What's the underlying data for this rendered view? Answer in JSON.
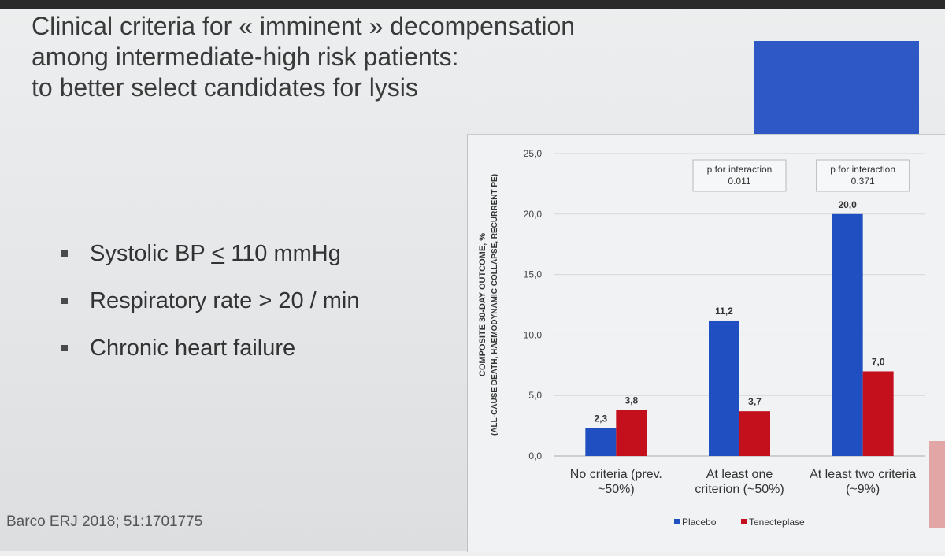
{
  "title": {
    "line1": "Clinical criteria for « imminent » decompensation",
    "line2": "among intermediate-high risk patients:",
    "line3": "to better select candidates for lysis"
  },
  "bullets": [
    {
      "text_before": "Systolic BP ",
      "underlined": "<",
      "text_after": " 110 mmHg"
    },
    {
      "text_before": "Respiratory rate > 20 / min",
      "underlined": "",
      "text_after": ""
    },
    {
      "text_before": "Chronic heart failure",
      "underlined": "",
      "text_after": ""
    }
  ],
  "footnote": "Barco ERJ 2018; 51:1701775",
  "colors": {
    "placebo": "#1f4fc0",
    "tenecteplase": "#c4101c",
    "logo_box": "#2f58c7"
  },
  "chart_data": {
    "type": "bar",
    "categories": [
      "No criteria (prev. ~50%)",
      "At least one criterion (~50%)",
      "At least two criteria (~9%)"
    ],
    "category_lines": [
      [
        "No criteria (prev.",
        "~50%)"
      ],
      [
        "At least one",
        "criterion (~50%)"
      ],
      [
        "At least two criteria",
        "(~9%)"
      ]
    ],
    "series": [
      {
        "name": "Placebo",
        "values": [
          2.3,
          11.2,
          20.0
        ],
        "labels": [
          "2,3",
          "11,2",
          "20,0"
        ],
        "color": "#1f4fc0"
      },
      {
        "name": "Tenecteplase",
        "values": [
          3.8,
          3.7,
          7.0
        ],
        "labels": [
          "3,8",
          "3,7",
          "7,0"
        ],
        "color": "#c4101c"
      }
    ],
    "ylabel": "COMPOSITE 30-DAY OUTCOME, %",
    "ylabel2": "(ALL-CAUSE DEATH, HAEMODYNAMIC COLLAPSE, RECURRENT PE)",
    "ylim": [
      0,
      25
    ],
    "yticks": [
      "0,0",
      "5,0",
      "10,0",
      "15,0",
      "20,0",
      "25,0"
    ],
    "ytick_values": [
      0,
      5,
      10,
      15,
      20,
      25
    ],
    "grid": true,
    "legend": "bottom",
    "annotations": [
      {
        "category_index": 1,
        "line1": "p for interaction",
        "line2": "0.011"
      },
      {
        "category_index": 2,
        "line1": "p for interaction",
        "line2": "0.371"
      }
    ]
  }
}
